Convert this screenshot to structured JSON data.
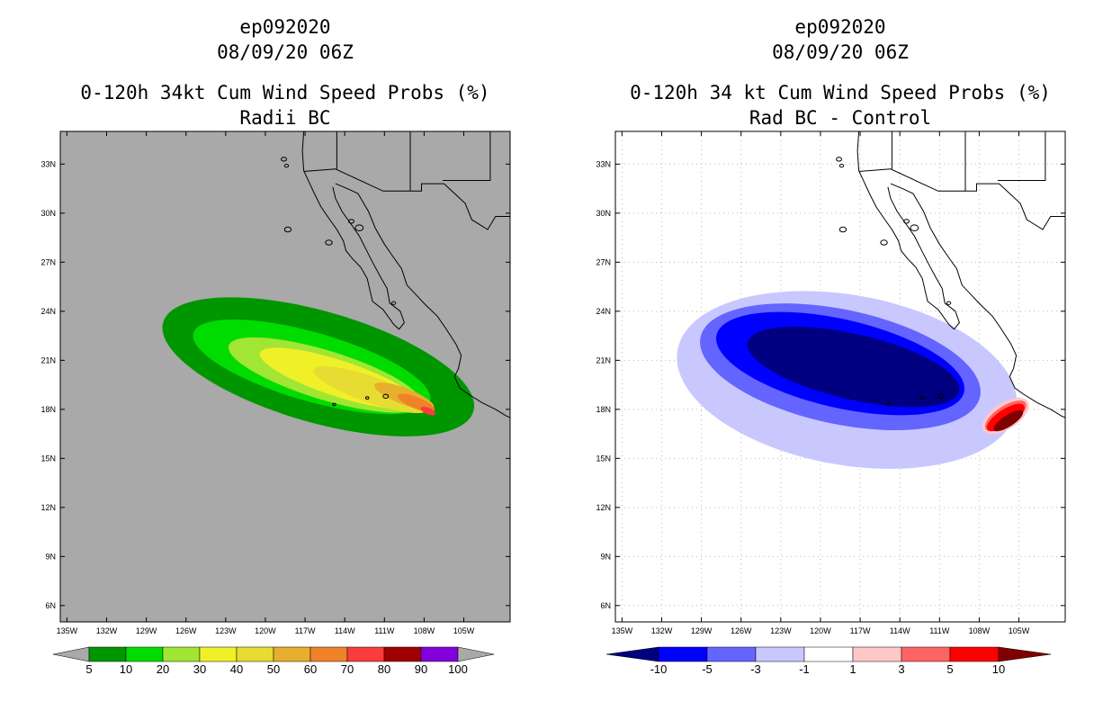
{
  "chart_data": [
    {
      "type": "heatmap",
      "storm_id": "ep092020",
      "datetime": "08/09/20 06Z",
      "title": "0-120h 34kt Cum Wind Speed Probs (%)",
      "subtitle": "Radii BC",
      "background_color": "#a9a9a9",
      "x_ticks": [
        "135W",
        "132W",
        "129W",
        "126W",
        "123W",
        "120W",
        "117W",
        "114W",
        "111W",
        "108W",
        "105W"
      ],
      "y_ticks": [
        "33N",
        "30N",
        "27N",
        "24N",
        "21N",
        "18N",
        "15N",
        "12N",
        "9N",
        "6N"
      ],
      "xlim": [
        -135.5,
        -101.5
      ],
      "ylim": [
        5,
        35
      ],
      "grid": false,
      "colorbar": {
        "labels": [
          "5",
          "10",
          "20",
          "30",
          "40",
          "50",
          "60",
          "70",
          "80",
          "90",
          "100"
        ],
        "colors": [
          "#009600",
          "#00dc00",
          "#a0e632",
          "#f0f028",
          "#e6dc32",
          "#e6af2d",
          "#f08228",
          "#fa3c3c",
          "#a00000",
          "#8200dc"
        ],
        "extend_color": "#a9a9a9"
      },
      "levels": [
        {
          "min": 5,
          "color": "#009600",
          "center_lon": -116.0,
          "center_lat": 20.6,
          "rx_deg": 12.2,
          "ry_deg": 3.4,
          "angle_deg": 16
        },
        {
          "min": 10,
          "color": "#00dc00",
          "center_lon": -116.5,
          "center_lat": 20.6,
          "rx_deg": 9.3,
          "ry_deg": 2.1,
          "angle_deg": 16
        },
        {
          "min": 20,
          "color": "#a0e632",
          "center_lon": -115.5,
          "center_lat": 20.1,
          "rx_deg": 7.6,
          "ry_deg": 1.5,
          "angle_deg": 17
        },
        {
          "min": 30,
          "color": "#f0f028",
          "center_lon": -114.5,
          "center_lat": 19.9,
          "rx_deg": 6.2,
          "ry_deg": 1.1,
          "angle_deg": 18
        },
        {
          "min": 40,
          "color": "#e6dc32",
          "center_lon": -112.0,
          "center_lat": 19.2,
          "rx_deg": 4.6,
          "ry_deg": 0.8,
          "angle_deg": 19
        },
        {
          "min": 50,
          "color": "#e6af2d",
          "center_lon": -109.5,
          "center_lat": 18.8,
          "rx_deg": 2.4,
          "ry_deg": 0.5,
          "angle_deg": 21
        },
        {
          "min": 60,
          "color": "#f08228",
          "center_lon": -108.6,
          "center_lat": 18.4,
          "rx_deg": 1.5,
          "ry_deg": 0.35,
          "angle_deg": 22
        },
        {
          "min": 70,
          "color": "#fa3c3c",
          "center_lon": -107.7,
          "center_lat": 17.9,
          "rx_deg": 0.6,
          "ry_deg": 0.2,
          "angle_deg": 22
        }
      ]
    },
    {
      "type": "heatmap",
      "storm_id": "ep092020",
      "datetime": "08/09/20 06Z",
      "title": "0-120h 34 kt Cum Wind Speed Probs (%)",
      "subtitle": "Rad BC - Control",
      "background_color": "#ffffff",
      "x_ticks": [
        "135W",
        "132W",
        "129W",
        "126W",
        "123W",
        "120W",
        "117W",
        "114W",
        "111W",
        "108W",
        "105W"
      ],
      "y_ticks": [
        "33N",
        "30N",
        "27N",
        "24N",
        "21N",
        "18N",
        "15N",
        "12N",
        "9N",
        "6N"
      ],
      "xlim": [
        -135.5,
        -101.5
      ],
      "ylim": [
        5,
        35
      ],
      "grid": true,
      "colorbar": {
        "labels": [
          "-10",
          "-5",
          "-3",
          "-1",
          "1",
          "3",
          "5",
          "10"
        ],
        "colors": [
          "#000080",
          "#0000ff",
          "#6464ff",
          "#c8c8ff",
          "#ffffff",
          "#ffc8c8",
          "#ff6464",
          "#ff0000",
          "#800000"
        ]
      },
      "levels": [
        {
          "max": -1,
          "color": "#c8c8ff",
          "center_lon": -118.0,
          "center_lat": 19.8,
          "rx_deg": 13.0,
          "ry_deg": 5.2,
          "angle_deg": 10
        },
        {
          "max": -3,
          "color": "#6464ff",
          "center_lon": -118.5,
          "center_lat": 20.6,
          "rx_deg": 10.8,
          "ry_deg": 3.5,
          "angle_deg": 12
        },
        {
          "max": -5,
          "color": "#0000ff",
          "center_lon": -118.5,
          "center_lat": 20.8,
          "rx_deg": 9.6,
          "ry_deg": 2.7,
          "angle_deg": 13
        },
        {
          "max": -10,
          "color": "#000080",
          "center_lon": -117.5,
          "center_lat": 20.6,
          "rx_deg": 8.2,
          "ry_deg": 2.0,
          "angle_deg": 13
        },
        {
          "min": 1,
          "color": "#ffc8c8",
          "center_lon": -106.0,
          "center_lat": 17.6,
          "rx_deg": 2.0,
          "ry_deg": 0.8,
          "angle_deg": -33
        },
        {
          "min": 3,
          "color": "#ff6464",
          "center_lon": -106.0,
          "center_lat": 17.6,
          "rx_deg": 1.8,
          "ry_deg": 0.6,
          "angle_deg": -33
        },
        {
          "min": 5,
          "color": "#ff0000",
          "center_lon": -106.0,
          "center_lat": 17.5,
          "rx_deg": 1.65,
          "ry_deg": 0.5,
          "angle_deg": -33
        },
        {
          "min": 10,
          "color": "#800000",
          "center_lon": -105.8,
          "center_lat": 17.3,
          "rx_deg": 1.3,
          "ry_deg": 0.35,
          "angle_deg": -33
        }
      ]
    }
  ]
}
